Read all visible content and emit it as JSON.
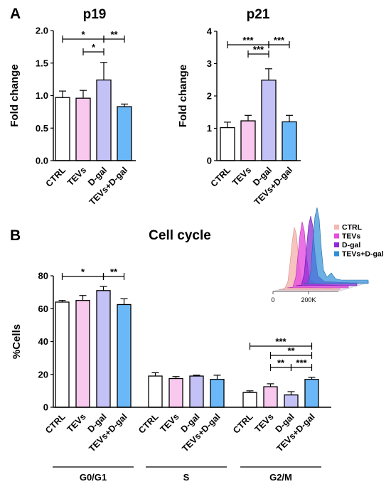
{
  "panels": {
    "a": "A",
    "b": "B"
  },
  "colors": {
    "CTRL": "#ffffff",
    "TEVs": "#f9c8ee",
    "D-gal": "#c3c1f6",
    "TEVs+D-gal": "#6ab8f7"
  },
  "flow_inset": {
    "legend": [
      {
        "label": "CTRL",
        "color": "#f4b8b4"
      },
      {
        "label": "TEVs",
        "color": "#e64de0"
      },
      {
        "label": "D-gal",
        "color": "#8f2bd6"
      },
      {
        "label": "TEVs+D-gal",
        "color": "#2f8fd8"
      }
    ],
    "axis_ticks": [
      "0",
      "200K"
    ]
  },
  "chart_data": [
    {
      "type": "bar",
      "title": "p19",
      "ylabel": "Fold change",
      "categories": [
        "CTRL",
        "TEVs",
        "D-gal",
        "TEVs+D-gal"
      ],
      "values": [
        0.97,
        0.96,
        1.24,
        0.83
      ],
      "errors": [
        0.1,
        0.12,
        0.27,
        0.04
      ],
      "ylim": [
        0,
        2
      ],
      "yticks": [
        "0.0",
        "0.5",
        "1.0",
        "1.5",
        "2.0"
      ],
      "significance": [
        {
          "from": 0,
          "to": 2,
          "label": "*",
          "level": 2
        },
        {
          "from": 2,
          "to": 3,
          "label": "**",
          "level": 2
        },
        {
          "from": 1,
          "to": 2,
          "label": "*",
          "level": 1
        }
      ]
    },
    {
      "type": "bar",
      "title": "p21",
      "ylabel": "Fold change",
      "categories": [
        "CTRL",
        "TEVs",
        "D-gal",
        "TEVs+D-gal"
      ],
      "values": [
        1.02,
        1.23,
        2.49,
        1.2
      ],
      "errors": [
        0.17,
        0.17,
        0.35,
        0.2
      ],
      "ylim": [
        0,
        4
      ],
      "yticks": [
        "0",
        "1",
        "2",
        "3",
        "4"
      ],
      "significance": [
        {
          "from": 0,
          "to": 2,
          "label": "***",
          "level": 2
        },
        {
          "from": 2,
          "to": 3,
          "label": "***",
          "level": 2
        },
        {
          "from": 1,
          "to": 2,
          "label": "***",
          "level": 1
        }
      ]
    },
    {
      "type": "bar",
      "title": "Cell cycle",
      "ylabel": "%Cells",
      "groups": [
        "G0/G1",
        "S",
        "G2/M"
      ],
      "categories": [
        "CTRL",
        "TEVs",
        "D-gal",
        "TEVs+D-gal"
      ],
      "series": [
        {
          "group": "G0/G1",
          "values": [
            64,
            65,
            71,
            62.5
          ],
          "errors": [
            1,
            3,
            2.5,
            3.5
          ]
        },
        {
          "group": "S",
          "values": [
            19,
            17.5,
            19,
            17
          ],
          "errors": [
            2,
            1.2,
            0.5,
            2.5
          ]
        },
        {
          "group": "G2/M",
          "values": [
            9,
            12.5,
            7.5,
            17
          ],
          "errors": [
            1,
            1.8,
            2,
            1.2
          ]
        }
      ],
      "ylim": [
        0,
        80
      ],
      "yticks": [
        "0",
        "20",
        "40",
        "60",
        "80"
      ],
      "significance": [
        {
          "group": 0,
          "from": 0,
          "to": 2,
          "label": "*",
          "level": 1
        },
        {
          "group": 0,
          "from": 2,
          "to": 3,
          "label": "**",
          "level": 1
        },
        {
          "group": 2,
          "from": 0,
          "to": 3,
          "label": "***",
          "level": 4
        },
        {
          "group": 2,
          "from": 1,
          "to": 3,
          "label": "**",
          "level": 3
        },
        {
          "group": 2,
          "from": 1,
          "to": 2,
          "label": "**",
          "level": 2
        },
        {
          "group": 2,
          "from": 2,
          "to": 3,
          "label": "***",
          "level": 2
        }
      ]
    }
  ]
}
